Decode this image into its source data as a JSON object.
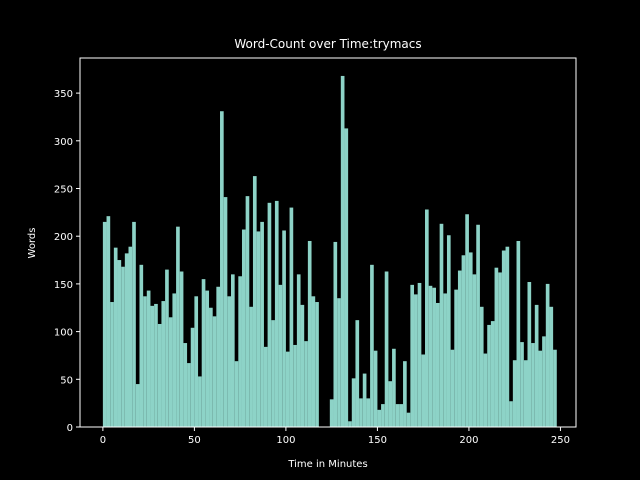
{
  "chart_data": {
    "type": "bar",
    "title": "Word-Count over Time:trymacs",
    "xlabel": "Time in Minutes",
    "ylabel": "Words",
    "color": "#8dd3c7",
    "bar_width": 2,
    "x": [
      0,
      2,
      4,
      6,
      8,
      10,
      12,
      14,
      16,
      18,
      20,
      22,
      24,
      26,
      28,
      30,
      32,
      34,
      36,
      38,
      40,
      42,
      44,
      46,
      48,
      50,
      52,
      54,
      56,
      58,
      60,
      62,
      64,
      66,
      68,
      70,
      72,
      74,
      76,
      78,
      80,
      82,
      84,
      86,
      88,
      90,
      92,
      94,
      96,
      98,
      100,
      102,
      104,
      106,
      108,
      110,
      112,
      114,
      116,
      118,
      120,
      122,
      124,
      126,
      128,
      130,
      132,
      134,
      136,
      138,
      140,
      142,
      144,
      146,
      148,
      150,
      152,
      154,
      156,
      158,
      160,
      162,
      164,
      166,
      168,
      170,
      172,
      174,
      176,
      178,
      180,
      182,
      184,
      186,
      188,
      190,
      192,
      194,
      196,
      198,
      200,
      202,
      204,
      206,
      208,
      210,
      212,
      214,
      216,
      218,
      220,
      222,
      224,
      226,
      228,
      230,
      232,
      234,
      236,
      238,
      240,
      242,
      244,
      246
    ],
    "values": [
      215,
      221,
      131,
      188,
      175,
      168,
      182,
      189,
      215,
      45,
      170,
      137,
      143,
      127,
      129,
      108,
      132,
      165,
      115,
      140,
      210,
      163,
      88,
      67,
      104,
      137,
      53,
      155,
      143,
      125,
      116,
      147,
      331,
      241,
      137,
      160,
      69,
      158,
      207,
      242,
      126,
      263,
      205,
      215,
      84,
      235,
      112,
      237,
      149,
      206,
      79,
      230,
      86,
      160,
      128,
      90,
      195,
      137,
      131,
      0,
      0,
      0,
      29,
      194,
      135,
      368,
      313,
      6,
      51,
      112,
      30,
      56,
      30,
      170,
      80,
      18,
      24,
      163,
      48,
      82,
      24,
      24,
      69,
      15,
      149,
      139,
      151,
      76,
      228,
      148,
      146,
      130,
      213,
      140,
      201,
      81,
      144,
      164,
      180,
      223,
      183,
      160,
      212,
      126,
      77,
      107,
      111,
      167,
      162,
      185,
      189,
      27,
      70,
      195,
      89,
      70,
      152,
      88,
      128,
      80,
      95,
      150,
      126,
      81
    ],
    "xlim": [
      -12.5,
      258.5
    ],
    "ylim": [
      0,
      386.8
    ],
    "xticks": [
      0,
      50,
      100,
      150,
      200,
      250
    ],
    "yticks": [
      0,
      50,
      100,
      150,
      200,
      250,
      300,
      350
    ]
  }
}
